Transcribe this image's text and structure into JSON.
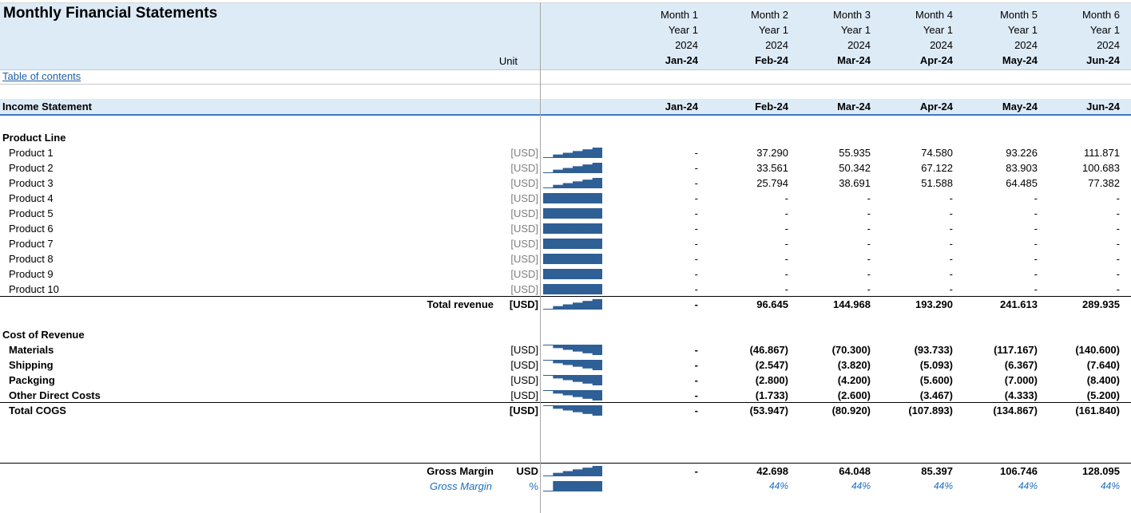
{
  "title": "Monthly Financial Statements",
  "unit_header": "Unit",
  "toc_link": "Table of contents",
  "months": [
    {
      "month": "Month 1",
      "year": "Year 1",
      "yyyy": "2024",
      "label": "Jan-24"
    },
    {
      "month": "Month 2",
      "year": "Year 1",
      "yyyy": "2024",
      "label": "Feb-24"
    },
    {
      "month": "Month 3",
      "year": "Year 1",
      "yyyy": "2024",
      "label": "Mar-24"
    },
    {
      "month": "Month 4",
      "year": "Year 1",
      "yyyy": "2024",
      "label": "Apr-24"
    },
    {
      "month": "Month 5",
      "year": "Year 1",
      "yyyy": "2024",
      "label": "May-24"
    },
    {
      "month": "Month 6",
      "year": "Year 1",
      "yyyy": "2024",
      "label": "Jun-24"
    }
  ],
  "income_statement": {
    "title": "Income Statement",
    "product_line": {
      "title": "Product Line",
      "rows": [
        {
          "label": "Product 1",
          "unit": "[USD]",
          "values": [
            "-",
            "37.290",
            "55.935",
            "74.580",
            "93.226",
            "111.871"
          ]
        },
        {
          "label": "Product 2",
          "unit": "[USD]",
          "values": [
            "-",
            "33.561",
            "50.342",
            "67.122",
            "83.903",
            "100.683"
          ]
        },
        {
          "label": "Product 3",
          "unit": "[USD]",
          "values": [
            "-",
            "25.794",
            "38.691",
            "51.588",
            "64.485",
            "77.382"
          ]
        },
        {
          "label": "Product 4",
          "unit": "[USD]",
          "values": [
            "-",
            "-",
            "-",
            "-",
            "-",
            "-"
          ]
        },
        {
          "label": "Product 5",
          "unit": "[USD]",
          "values": [
            "-",
            "-",
            "-",
            "-",
            "-",
            "-"
          ]
        },
        {
          "label": "Product 6",
          "unit": "[USD]",
          "values": [
            "-",
            "-",
            "-",
            "-",
            "-",
            "-"
          ]
        },
        {
          "label": "Product 7",
          "unit": "[USD]",
          "values": [
            "-",
            "-",
            "-",
            "-",
            "-",
            "-"
          ]
        },
        {
          "label": "Product 8",
          "unit": "[USD]",
          "values": [
            "-",
            "-",
            "-",
            "-",
            "-",
            "-"
          ]
        },
        {
          "label": "Product 9",
          "unit": "[USD]",
          "values": [
            "-",
            "-",
            "-",
            "-",
            "-",
            "-"
          ]
        },
        {
          "label": "Product 10",
          "unit": "[USD]",
          "values": [
            "-",
            "-",
            "-",
            "-",
            "-",
            "-"
          ]
        }
      ],
      "total": {
        "label": "Total revenue",
        "unit": "[USD]",
        "values": [
          "-",
          "96.645",
          "144.968",
          "193.290",
          "241.613",
          "289.935"
        ]
      }
    },
    "cost_of_revenue": {
      "title": "Cost  of Revenue",
      "rows": [
        {
          "label": "Materials",
          "unit": "[USD]",
          "values": [
            "-",
            "(46.867)",
            "(70.300)",
            "(93.733)",
            "(117.167)",
            "(140.600)"
          ]
        },
        {
          "label": "Shipping",
          "unit": "[USD]",
          "values": [
            "-",
            "(2.547)",
            "(3.820)",
            "(5.093)",
            "(6.367)",
            "(7.640)"
          ]
        },
        {
          "label": "Packging",
          "unit": "[USD]",
          "values": [
            "-",
            "(2.800)",
            "(4.200)",
            "(5.600)",
            "(7.000)",
            "(8.400)"
          ]
        },
        {
          "label": "Other Direct Costs",
          "unit": "[USD]",
          "values": [
            "-",
            "(1.733)",
            "(2.600)",
            "(3.467)",
            "(4.333)",
            "(5.200)"
          ]
        }
      ],
      "total": {
        "label": "Total COGS",
        "unit": "[USD]",
        "values": [
          "-",
          "(53.947)",
          "(80.920)",
          "(107.893)",
          "(134.867)",
          "(161.840)"
        ]
      }
    },
    "gross_margin": {
      "label": "Gross Margin",
      "unit": "USD",
      "values": [
        "-",
        "42.698",
        "64.048",
        "85.397",
        "106.746",
        "128.095"
      ]
    },
    "gross_margin_pct": {
      "label": "Gross Margin",
      "unit": "%",
      "values": [
        "",
        "44%",
        "44%",
        "44%",
        "44%",
        "44%"
      ]
    }
  },
  "colors": {
    "header_band": "#ddebf7",
    "sparkline": "#2e5f95",
    "link": "#1f5fa8",
    "accent_line": "#3c78c8"
  }
}
